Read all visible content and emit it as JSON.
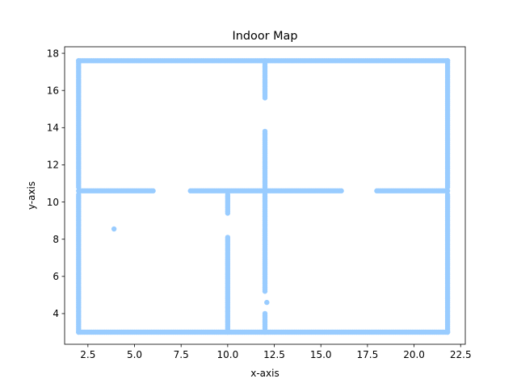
{
  "chart_data": {
    "type": "scatter",
    "title": "Indoor Map",
    "xlabel": "x-axis",
    "ylabel": "y-axis",
    "xlim": [
      1.25,
      22.75
    ],
    "ylim": [
      2.35,
      18.35
    ],
    "xticks": [
      2.5,
      5.0,
      7.5,
      10.0,
      12.5,
      15.0,
      17.5,
      20.0,
      22.5
    ],
    "xtick_labels": [
      "2.5",
      "5.0",
      "7.5",
      "10.0",
      "12.5",
      "15.0",
      "17.5",
      "20.0",
      "22.5"
    ],
    "yticks": [
      4,
      6,
      8,
      10,
      12,
      14,
      16,
      18
    ],
    "ytick_labels": [
      "4",
      "6",
      "8",
      "10",
      "12",
      "14",
      "16",
      "18"
    ],
    "grid": false,
    "marker_color": "#99ccff",
    "series": [
      {
        "segments": [
          {
            "from": [
              2.0,
              17.6
            ],
            "to": [
              21.8,
              17.6
            ],
            "step": 0.1
          },
          {
            "from": [
              2.0,
              3.0
            ],
            "to": [
              21.8,
              3.0
            ],
            "step": 0.1
          },
          {
            "from": [
              2.0,
              3.0
            ],
            "to": [
              2.0,
              10.4
            ],
            "step": 0.1
          },
          {
            "from": [
              2.0,
              10.8
            ],
            "to": [
              2.0,
              17.6
            ],
            "step": 0.1
          },
          {
            "from": [
              21.8,
              3.0
            ],
            "to": [
              21.8,
              10.4
            ],
            "step": 0.1
          },
          {
            "from": [
              21.8,
              10.8
            ],
            "to": [
              21.8,
              17.6
            ],
            "step": 0.1
          },
          {
            "from": [
              2.0,
              10.6
            ],
            "to": [
              6.0,
              10.6
            ],
            "step": 0.1
          },
          {
            "from": [
              8.0,
              10.6
            ],
            "to": [
              16.1,
              10.6
            ],
            "step": 0.1
          },
          {
            "from": [
              18.0,
              10.6
            ],
            "to": [
              21.8,
              10.6
            ],
            "step": 0.1
          },
          {
            "from": [
              12.0,
              15.6
            ],
            "to": [
              12.0,
              17.6
            ],
            "step": 0.1
          },
          {
            "from": [
              12.0,
              5.2
            ],
            "to": [
              12.0,
              13.8
            ],
            "step": 0.1
          },
          {
            "from": [
              12.0,
              3.0
            ],
            "to": [
              12.0,
              4.0
            ],
            "step": 0.1
          },
          {
            "from": [
              10.0,
              3.0
            ],
            "to": [
              10.0,
              8.1
            ],
            "step": 0.1
          },
          {
            "from": [
              10.0,
              9.4
            ],
            "to": [
              10.0,
              10.4
            ],
            "step": 0.1
          }
        ],
        "points": [
          [
            3.9,
            8.55
          ],
          [
            12.1,
            4.6
          ]
        ]
      }
    ]
  }
}
